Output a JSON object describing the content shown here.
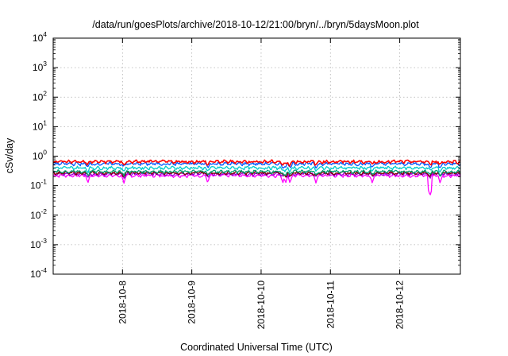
{
  "chart_data": {
    "type": "line",
    "title": "/data/run/goesPlots/archive/2018-10-12/21:00/bryn/../bryn/5daysMoon.plot",
    "xlabel": "Coordinated Universal Time (UTC)",
    "ylabel": "cSv/day",
    "yscale": "log",
    "ylim": [
      0.0001,
      10000
    ],
    "y_ticks": [
      {
        "base": "10",
        "exp": "-4",
        "value": 0.0001
      },
      {
        "base": "10",
        "exp": "-3",
        "value": 0.001
      },
      {
        "base": "10",
        "exp": "-2",
        "value": 0.01
      },
      {
        "base": "10",
        "exp": "-1",
        "value": 0.1
      },
      {
        "base": "10",
        "exp": "0",
        "value": 1
      },
      {
        "base": "10",
        "exp": "1",
        "value": 10
      },
      {
        "base": "10",
        "exp": "2",
        "value": 100
      },
      {
        "base": "10",
        "exp": "3",
        "value": 1000
      },
      {
        "base": "10",
        "exp": "4",
        "value": 10000
      }
    ],
    "xlim": [
      "2018-10-07 00:00",
      "2018-10-12 21:00"
    ],
    "x_ticks": [
      "2018-10-8",
      "2018-10-9",
      "2018-10-10",
      "2018-10-11",
      "2018-10-12"
    ],
    "x_tick_dates": [
      "2018-10-08 00:00",
      "2018-10-09 00:00",
      "2018-10-10 00:00",
      "2018-10-11 00:00",
      "2018-10-12 00:00"
    ],
    "grid": true,
    "dip_times": [
      "2018-10-07 12:00",
      "2018-10-08 00:30",
      "2018-10-09 05:30",
      "2018-10-10 07:30",
      "2018-10-10 08:30",
      "2018-10-10 10:00",
      "2018-10-10 19:00",
      "2018-10-11 14:30",
      "2018-10-12 10:30",
      "2018-10-12 14:00"
    ],
    "series": [
      {
        "color": "#ff00ff",
        "values_approx": [
          0.22,
          0.22
        ],
        "min_dips": [
          0.045,
          0.12
        ]
      },
      {
        "color": "#9400d3",
        "values_approx": [
          0.25,
          0.25
        ]
      },
      {
        "color": "#800000",
        "values_approx": [
          0.27,
          0.27
        ]
      },
      {
        "color": "#009e73",
        "values_approx": [
          0.3,
          0.3
        ]
      },
      {
        "color": "#00cccc",
        "values_approx": [
          0.4,
          0.4
        ]
      },
      {
        "color": "#0055ff",
        "values_approx": [
          0.55,
          0.55
        ]
      },
      {
        "color": "#ff0000",
        "values_approx": [
          0.65,
          0.65
        ]
      }
    ]
  }
}
